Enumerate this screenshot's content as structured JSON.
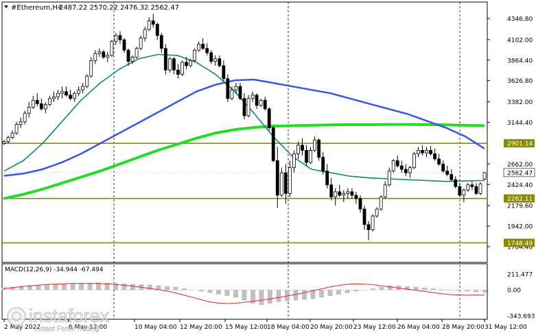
{
  "header": {
    "symbol_label": "#Ethereum,H4",
    "ohlc": "2487.22 2570.22 2476.32 2562.47"
  },
  "price_axis": {
    "ticks": [
      "4346.80",
      "4102.00",
      "3864.40",
      "3626.80",
      "3382.00",
      "3144.40",
      "2662.00",
      "2424.40",
      "2179.60",
      "1942.00",
      "1704.40"
    ],
    "markers": [
      {
        "label": "2901.14",
        "style": "level"
      },
      {
        "label": "2562.47",
        "style": "current"
      },
      {
        "label": "2262.11",
        "style": "level"
      },
      {
        "label": "1748.49",
        "style": "level"
      }
    ]
  },
  "time_axis": {
    "labels": [
      "2 May 2022",
      "6 May 12:00",
      "10 May 04:00",
      "12 May 20:00",
      "15 May 12:00",
      "18 May 04:00",
      "20 May 20:00",
      "23 May 12:00",
      "26 May 04:00",
      "28 May 20:00",
      "31 May 12:00"
    ]
  },
  "macd": {
    "label": "MACD(12,26,9) -34.944 -67.494",
    "axis": [
      "211.477",
      "0.00",
      "-343.693"
    ]
  },
  "watermark": {
    "brand": "instaforex",
    "tagline": "Instant Forex Trading"
  },
  "colors": {
    "candle": "#000000",
    "ma_slow": "#22dd22",
    "ma_mid": "#3355ee",
    "ma_fast": "#118877",
    "level_line": "#8a8a00",
    "macd_signal": "#ee2222",
    "macd_hist": "#c0c0c0"
  },
  "chart_data": {
    "type": "candlestick",
    "title": "#Ethereum,H4",
    "ylim": [
      1704.4,
      4400
    ],
    "levels": [
      2901.14,
      2262.11,
      1748.49
    ],
    "current_price": 2562.47,
    "ma_slow": [
      2262,
      2310,
      2370,
      2440,
      2510,
      2580,
      2660,
      2740,
      2820,
      2890,
      2960,
      3020,
      3060,
      3085,
      3100,
      3105,
      3110,
      3115,
      3118,
      3118,
      3120,
      3120,
      3118,
      3115,
      3110,
      3105
    ],
    "ma_mid": [
      2525,
      2550,
      2600,
      2680,
      2780,
      2900,
      3020,
      3140,
      3260,
      3380,
      3500,
      3580,
      3630,
      3640,
      3600,
      3560,
      3520,
      3480,
      3420,
      3360,
      3300,
      3240,
      3160,
      3080,
      2980,
      2840
    ],
    "ma_fast": [
      2580,
      2700,
      2900,
      3150,
      3400,
      3600,
      3760,
      3880,
      3930,
      3920,
      3840,
      3700,
      3500,
      3250,
      2980,
      2750,
      2600,
      2560,
      2520,
      2500,
      2490,
      2480,
      2470,
      2460,
      2465,
      2470
    ],
    "candles": [
      [
        2900,
        2940,
        2880,
        2920
      ],
      [
        2920,
        2990,
        2900,
        2970
      ],
      [
        2970,
        3050,
        2950,
        3020
      ],
      [
        3020,
        3150,
        3000,
        3120
      ],
      [
        3120,
        3200,
        3080,
        3150
      ],
      [
        3150,
        3280,
        3120,
        3250
      ],
      [
        3250,
        3380,
        3200,
        3320
      ],
      [
        3320,
        3450,
        3300,
        3400
      ],
      [
        3400,
        3480,
        3330,
        3360
      ],
      [
        3360,
        3420,
        3280,
        3300
      ],
      [
        3300,
        3380,
        3250,
        3350
      ],
      [
        3350,
        3450,
        3330,
        3420
      ],
      [
        3420,
        3500,
        3380,
        3440
      ],
      [
        3440,
        3520,
        3400,
        3480
      ],
      [
        3480,
        3560,
        3420,
        3500
      ],
      [
        3500,
        3560,
        3440,
        3460
      ],
      [
        3460,
        3520,
        3400,
        3420
      ],
      [
        3420,
        3500,
        3380,
        3480
      ],
      [
        3480,
        3560,
        3450,
        3520
      ],
      [
        3520,
        3600,
        3480,
        3560
      ],
      [
        3560,
        3700,
        3540,
        3680
      ],
      [
        3680,
        3900,
        3660,
        3860
      ],
      [
        3860,
        3980,
        3820,
        3940
      ],
      [
        3940,
        4000,
        3900,
        3960
      ],
      [
        3960,
        3980,
        3880,
        3900
      ],
      [
        3900,
        3960,
        3840,
        3920
      ],
      [
        3920,
        4100,
        3900,
        4080
      ],
      [
        4080,
        4180,
        4040,
        4150
      ],
      [
        4150,
        4200,
        4050,
        4100
      ],
      [
        4100,
        4120,
        3950,
        3980
      ],
      [
        3980,
        4000,
        3800,
        3850
      ],
      [
        3850,
        3920,
        3820,
        3900
      ],
      [
        3900,
        4020,
        3880,
        4000
      ],
      [
        4000,
        4150,
        3980,
        4120
      ],
      [
        4120,
        4250,
        4080,
        4220
      ],
      [
        4220,
        4360,
        4200,
        4320
      ],
      [
        4320,
        4400,
        4240,
        4280
      ],
      [
        4280,
        4300,
        4100,
        4150
      ],
      [
        4150,
        4180,
        3950,
        4000
      ],
      [
        4000,
        4050,
        3700,
        3750
      ],
      [
        3750,
        3900,
        3720,
        3880
      ],
      [
        3880,
        3900,
        3700,
        3750
      ],
      [
        3750,
        3820,
        3650,
        3700
      ],
      [
        3700,
        3860,
        3680,
        3840
      ],
      [
        3840,
        3900,
        3760,
        3800
      ],
      [
        3800,
        3880,
        3780,
        3860
      ],
      [
        3860,
        4000,
        3840,
        3980
      ],
      [
        3980,
        4080,
        3960,
        4050
      ],
      [
        4050,
        4120,
        3980,
        4000
      ],
      [
        4000,
        4060,
        3920,
        3950
      ],
      [
        3950,
        3980,
        3820,
        3850
      ],
      [
        3850,
        3920,
        3800,
        3880
      ],
      [
        3880,
        3920,
        3780,
        3800
      ],
      [
        3800,
        3860,
        3620,
        3650
      ],
      [
        3650,
        3700,
        3380,
        3420
      ],
      [
        3420,
        3560,
        3400,
        3520
      ],
      [
        3520,
        3600,
        3480,
        3560
      ],
      [
        3560,
        3600,
        3400,
        3420
      ],
      [
        3420,
        3480,
        3180,
        3220
      ],
      [
        3220,
        3460,
        3200,
        3420
      ],
      [
        3420,
        3500,
        3380,
        3460
      ],
      [
        3460,
        3480,
        3300,
        3340
      ],
      [
        3340,
        3420,
        3320,
        3400
      ],
      [
        3400,
        3440,
        3280,
        3300
      ],
      [
        3300,
        3320,
        3050,
        3080
      ],
      [
        3080,
        3100,
        2680,
        2700
      ],
      [
        2700,
        2860,
        2150,
        2300
      ],
      [
        2300,
        2620,
        2280,
        2560
      ],
      [
        2560,
        2660,
        2200,
        2320
      ],
      [
        2320,
        2700,
        2280,
        2620
      ],
      [
        2620,
        2820,
        2560,
        2780
      ],
      [
        2780,
        2920,
        2720,
        2880
      ],
      [
        2880,
        2960,
        2760,
        2820
      ],
      [
        2820,
        2880,
        2640,
        2680
      ],
      [
        2680,
        2860,
        2660,
        2820
      ],
      [
        2820,
        2980,
        2800,
        2940
      ],
      [
        2940,
        2960,
        2700,
        2740
      ],
      [
        2740,
        2800,
        2540,
        2580
      ],
      [
        2580,
        2660,
        2380,
        2420
      ],
      [
        2420,
        2500,
        2240,
        2280
      ],
      [
        2280,
        2380,
        2180,
        2340
      ],
      [
        2340,
        2420,
        2280,
        2300
      ],
      [
        2300,
        2360,
        2220,
        2320
      ],
      [
        2320,
        2380,
        2260,
        2340
      ],
      [
        2340,
        2380,
        2260,
        2300
      ],
      [
        2300,
        2340,
        2200,
        2260
      ],
      [
        2260,
        2300,
        2100,
        2140
      ],
      [
        2140,
        2180,
        1900,
        1960
      ],
      [
        1960,
        2000,
        1780,
        1900
      ],
      [
        1900,
        2080,
        1880,
        2060
      ],
      [
        2060,
        2160,
        2040,
        2140
      ],
      [
        2140,
        2300,
        2120,
        2280
      ],
      [
        2280,
        2460,
        2260,
        2420
      ],
      [
        2420,
        2620,
        2400,
        2580
      ],
      [
        2580,
        2720,
        2560,
        2700
      ],
      [
        2700,
        2760,
        2620,
        2640
      ],
      [
        2640,
        2700,
        2560,
        2600
      ],
      [
        2600,
        2660,
        2520,
        2560
      ],
      [
        2560,
        2640,
        2500,
        2620
      ],
      [
        2620,
        2800,
        2600,
        2780
      ],
      [
        2780,
        2860,
        2740,
        2820
      ],
      [
        2820,
        2880,
        2760,
        2790
      ],
      [
        2790,
        2860,
        2740,
        2820
      ],
      [
        2820,
        2870,
        2760,
        2780
      ],
      [
        2780,
        2840,
        2700,
        2720
      ],
      [
        2720,
        2780,
        2640,
        2660
      ],
      [
        2660,
        2700,
        2560,
        2580
      ],
      [
        2580,
        2640,
        2520,
        2540
      ],
      [
        2540,
        2600,
        2460,
        2480
      ],
      [
        2480,
        2520,
        2380,
        2400
      ],
      [
        2400,
        2440,
        2280,
        2300
      ],
      [
        2300,
        2380,
        2220,
        2360
      ],
      [
        2360,
        2440,
        2340,
        2420
      ],
      [
        2420,
        2460,
        2360,
        2400
      ],
      [
        2400,
        2440,
        2300,
        2320
      ],
      [
        2320,
        2450,
        2300,
        2430
      ],
      [
        2487.22,
        2570.22,
        2476.32,
        2562.47
      ]
    ],
    "macd_histogram": [
      30,
      40,
      50,
      60,
      65,
      70,
      75,
      80,
      85,
      90,
      95,
      100,
      95,
      90,
      85,
      80,
      75,
      70,
      60,
      50,
      40,
      20,
      0,
      -20,
      -40,
      -60,
      -80,
      -100,
      -140,
      -180,
      -200,
      -180,
      -160,
      -150,
      -140,
      -130,
      -120,
      -100,
      -80,
      -60,
      -40,
      -20,
      0,
      20,
      40,
      60,
      60,
      50,
      40,
      30,
      20,
      10,
      0,
      -10,
      -20,
      -30,
      -35
    ],
    "macd_signal": [
      20,
      30,
      45,
      55,
      65,
      72,
      78,
      82,
      86,
      88,
      88,
      85,
      80,
      72,
      62,
      50,
      36,
      20,
      5,
      -15,
      -40,
      -70,
      -100,
      -130,
      -160,
      -175,
      -180,
      -175,
      -165,
      -150,
      -135,
      -120,
      -100,
      -80,
      -60,
      -35,
      -10,
      15,
      40,
      60,
      75,
      80,
      78,
      70,
      55,
      40,
      25,
      10,
      -5,
      -20,
      -35,
      -50,
      -62,
      -67,
      -68,
      -67,
      -67
    ]
  }
}
